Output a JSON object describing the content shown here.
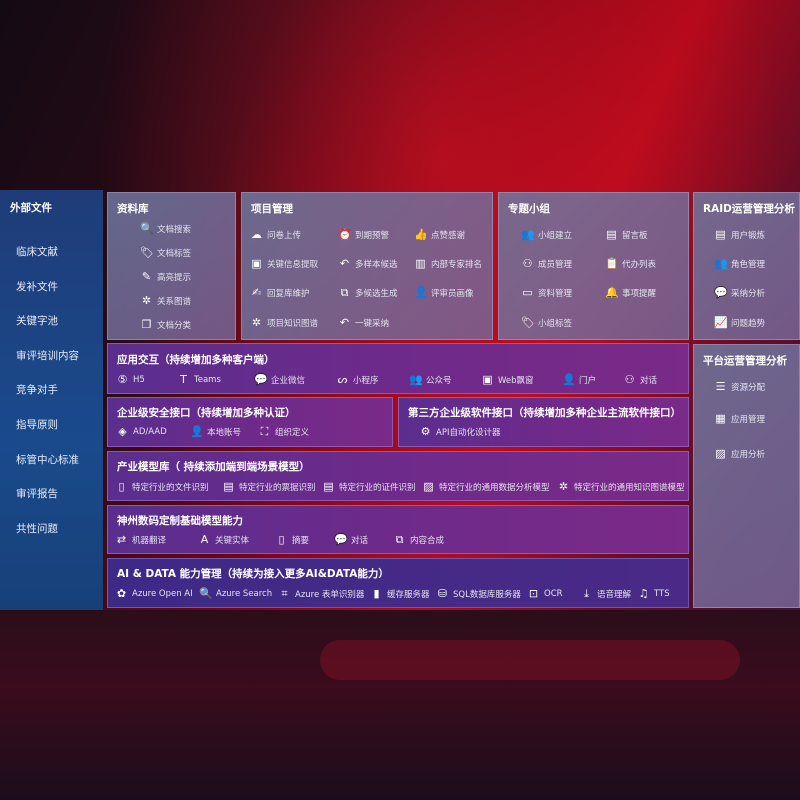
{
  "colors": {
    "sidebar": "#1f3c78",
    "panel_grey": "#6e78a0",
    "panel_purple": "#6e2a8a",
    "background_red": "#b0091a"
  },
  "sidebar": {
    "title": "外部文件",
    "items": [
      "临床文献",
      "发补文件",
      "关键字池",
      "审评培训内容",
      "竞争对手",
      "指导原则",
      "标管中心标准",
      "审评报告",
      "共性问题"
    ]
  },
  "library": {
    "title": "资料库",
    "items": [
      {
        "label": "文档搜索",
        "icon": "doc-search"
      },
      {
        "label": "文档标签",
        "icon": "tag"
      },
      {
        "label": "高亮提示",
        "icon": "pen"
      },
      {
        "label": "关系图谱",
        "icon": "graph"
      },
      {
        "label": "文档分类",
        "icon": "doc-copy"
      }
    ]
  },
  "project": {
    "title": "项目管理",
    "items": [
      {
        "label": "问卷上传",
        "icon": "cloud-upload"
      },
      {
        "label": "到期预警",
        "icon": "alarm"
      },
      {
        "label": "点赞感谢",
        "icon": "thumbs-up"
      },
      {
        "label": "关键信息提取",
        "icon": "window"
      },
      {
        "label": "多样本候选",
        "icon": "reply"
      },
      {
        "label": "内部专家排名",
        "icon": "ranking"
      },
      {
        "label": "回复库维护",
        "icon": "edit"
      },
      {
        "label": "多候选生成",
        "icon": "puzzle"
      },
      {
        "label": "评审员画像",
        "icon": "user"
      },
      {
        "label": "项目知识图谱",
        "icon": "graph"
      },
      {
        "label": "一键采纳",
        "icon": "reply"
      }
    ]
  },
  "group": {
    "title": "专题小组",
    "items": [
      {
        "label": "小组建立",
        "icon": "users"
      },
      {
        "label": "留言板",
        "icon": "bbs"
      },
      {
        "label": "成员管理",
        "icon": "user-add"
      },
      {
        "label": "代办列表",
        "icon": "clipboard"
      },
      {
        "label": "资料管理",
        "icon": "folder"
      },
      {
        "label": "事项提醒",
        "icon": "bell"
      },
      {
        "label": "小组标签",
        "icon": "tag"
      }
    ]
  },
  "raid": {
    "title": "RAID运营管理分析",
    "items": [
      {
        "label": "用户锻炼",
        "icon": "id-card"
      },
      {
        "label": "角色管理",
        "icon": "users"
      },
      {
        "label": "采纳分析",
        "icon": "qa"
      },
      {
        "label": "问题趋势",
        "icon": "trend"
      }
    ]
  },
  "platform": {
    "title": "平台运营管理分析",
    "items": [
      {
        "label": "资源分配",
        "icon": "list-check"
      },
      {
        "label": "应用管理",
        "icon": "grid"
      },
      {
        "label": "应用分析",
        "icon": "chart"
      }
    ]
  },
  "interaction": {
    "title": "应用交互（持续增加多种客户端）",
    "items": [
      {
        "label": "H5",
        "icon": "html5"
      },
      {
        "label": "Teams",
        "icon": "teams"
      },
      {
        "label": "企业微信",
        "icon": "wechat"
      },
      {
        "label": "小程序",
        "icon": "mini-program"
      },
      {
        "label": "公众号",
        "icon": "users"
      },
      {
        "label": "Web飘窗",
        "icon": "window"
      },
      {
        "label": "门户",
        "icon": "user"
      },
      {
        "label": "对话",
        "icon": "chat-users"
      }
    ]
  },
  "security": {
    "title": "企业级安全接口（持续增加多种认证）",
    "items": [
      {
        "label": "AD/AAD",
        "icon": "diamond"
      },
      {
        "label": "本地账号",
        "icon": "user-lock"
      },
      {
        "label": "组织定义",
        "icon": "org"
      }
    ]
  },
  "third_party": {
    "title": "第三方企业级软件接口（持续增加多种企业主流软件接口）",
    "items": [
      {
        "label": "API自动化设计器",
        "icon": "gear"
      }
    ]
  },
  "industry": {
    "title": "产业模型库（ 持续添加端到端场景模型）",
    "items": [
      {
        "label": "特定行业的文件识别",
        "icon": "doc"
      },
      {
        "label": "特定行业的票据识别",
        "icon": "receipt"
      },
      {
        "label": "特定行业的证件识别",
        "icon": "id-card"
      },
      {
        "label": "特定行业的通用数据分析模型",
        "icon": "chart"
      },
      {
        "label": "特定行业的通用知识图谱模型",
        "icon": "graph"
      }
    ]
  },
  "base_model": {
    "title": "神州数码定制基础模型能力",
    "items": [
      {
        "label": "机器翻译",
        "icon": "translate"
      },
      {
        "label": "关键实体",
        "icon": "entity"
      },
      {
        "label": "摘要",
        "icon": "doc"
      },
      {
        "label": "对话",
        "icon": "chat"
      },
      {
        "label": "内容合成",
        "icon": "puzzle"
      }
    ]
  },
  "ai_data": {
    "title": "AI & DATA 能力管理（持续为接入更多AI&DATA能力）",
    "items": [
      {
        "label": "Azure Open AI",
        "icon": "openai"
      },
      {
        "label": "Azure Search",
        "icon": "doc-search"
      },
      {
        "label": "Azure 表单识别器",
        "icon": "form"
      },
      {
        "label": "缓存服务器",
        "icon": "cache"
      },
      {
        "label": "SQL数据库服务器",
        "icon": "database"
      },
      {
        "label": "OCR",
        "icon": "ocr"
      },
      {
        "label": "语音理解",
        "icon": "download"
      },
      {
        "label": "TTS",
        "icon": "tts"
      }
    ]
  }
}
